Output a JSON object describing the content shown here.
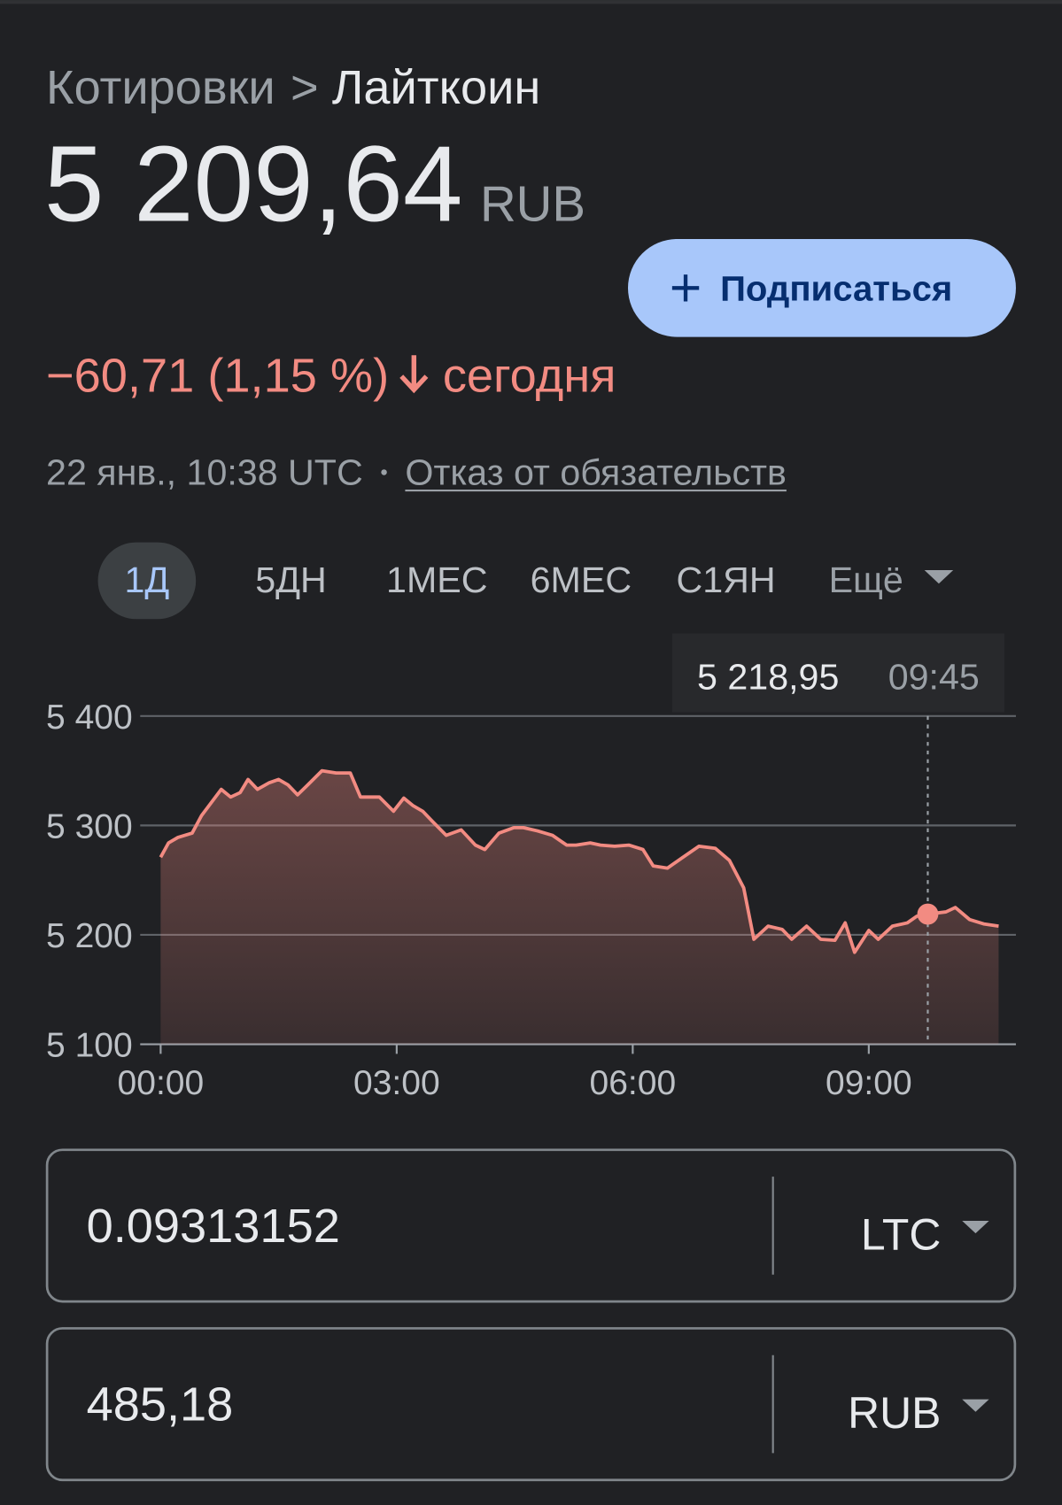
{
  "header": {
    "breadcrumb": [
      "Котировки",
      ">",
      "Лайткоин"
    ],
    "price": "5 209,64",
    "currency": "RUB",
    "subscribe": "Подписаться",
    "change": "−60,71 (1,15 %)",
    "period": "сегодня",
    "timestamp": "22 янв., 10:38 UTC",
    "disclaimer": "Отказ от обязательств"
  },
  "ranges": {
    "options": [
      "1Д",
      "5ДН",
      "1МЕС",
      "6МЕС",
      "С1ЯН"
    ],
    "selected": 0,
    "more": "Ещё"
  },
  "chart_data": {
    "type": "line",
    "color": "#f28b82",
    "x": [
      0,
      0.1,
      0.22,
      0.4,
      0.52,
      0.77,
      0.89,
      1.01,
      1.11,
      1.23,
      1.38,
      1.5,
      1.62,
      1.74,
      1.87,
      2.05,
      2.23,
      2.41,
      2.54,
      2.78,
      2.96,
      3.09,
      3.21,
      3.33,
      3.45,
      3.63,
      3.82,
      4.0,
      4.12,
      4.3,
      4.49,
      4.61,
      4.79,
      4.98,
      5.16,
      5.28,
      5.46,
      5.59,
      5.77,
      5.95,
      6.13,
      6.26,
      6.44,
      6.62,
      6.84,
      7.05,
      7.23,
      7.41,
      7.54,
      7.72,
      7.9,
      8.02,
      8.21,
      8.39,
      8.57,
      8.7,
      8.82,
      9.0,
      9.12,
      9.3,
      9.49,
      9.61,
      9.75,
      9.98,
      10.1,
      10.28,
      10.46,
      10.65
    ],
    "values": [
      5271,
      5284,
      5289,
      5293,
      5309,
      5333,
      5326,
      5330,
      5342,
      5333,
      5339,
      5342,
      5337,
      5328,
      5337,
      5350,
      5348,
      5348,
      5326,
      5326,
      5313,
      5325,
      5318,
      5313,
      5304,
      5291,
      5296,
      5282,
      5278,
      5293,
      5298,
      5298,
      5295,
      5291,
      5282,
      5282,
      5284,
      5282,
      5281,
      5282,
      5278,
      5263,
      5261,
      5270,
      5281,
      5279,
      5268,
      5243,
      5196,
      5208,
      5205,
      5196,
      5208,
      5196,
      5195,
      5211,
      5184,
      5204,
      5196,
      5208,
      5211,
      5217,
      5218.95,
      5221,
      5225,
      5214,
      5210,
      5208
    ],
    "xlim": [
      -0.26,
      10.87
    ],
    "xticks": [
      {
        "value": 0,
        "label": "00:00"
      },
      {
        "value": 3,
        "label": "03:00"
      },
      {
        "value": 6,
        "label": "06:00"
      },
      {
        "value": 9,
        "label": "09:00"
      }
    ],
    "ylim": [
      5100,
      5400
    ],
    "yticks": [
      {
        "value": 5100,
        "label": "5 100"
      },
      {
        "value": 5200,
        "label": "5 200"
      },
      {
        "value": 5300,
        "label": "5 300"
      },
      {
        "value": 5400,
        "label": "5 400"
      }
    ],
    "grid": true,
    "marker": {
      "x": 9.75,
      "x_label": "09:45",
      "value": 5218.95,
      "value_label": "5 218,95"
    }
  },
  "converter": [
    {
      "amount": "0.09313152",
      "unit": "LTC"
    },
    {
      "amount": "485,18",
      "unit": "RUB"
    }
  ]
}
